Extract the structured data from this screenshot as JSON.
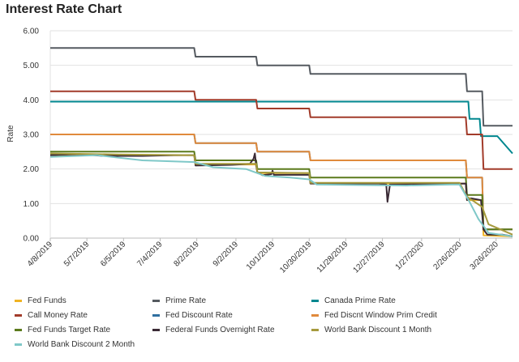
{
  "page": {
    "title": "Interest Rate Chart"
  },
  "chart_data": {
    "type": "line",
    "title": "Interest Rate Chart",
    "ylabel": "Rate",
    "xlabel": "",
    "ylim": [
      0,
      6
    ],
    "y_ticks": [
      "0.00",
      "1.00",
      "2.00",
      "3.00",
      "4.00",
      "5.00",
      "6.00"
    ],
    "x_ticks": [
      "4/8/2019",
      "5/7/2019",
      "6/5/2019",
      "7/4/2019",
      "8/2/2019",
      "9/2/2019",
      "10/1/2019",
      "10/30/2019",
      "11/28/2019",
      "12/27/2019",
      "1/27/2020",
      "2/26/2020",
      "3/26/2020"
    ],
    "x_range": [
      "2019-04-08",
      "2020-04-08"
    ],
    "grid": "horizontal",
    "legend_position": "bottom",
    "series": [
      {
        "name": "Fed Funds",
        "color": "#f0b323",
        "points": [
          [
            "2019-04-08",
            2.4
          ],
          [
            "2019-07-31",
            2.4
          ],
          [
            "2019-08-01",
            2.13
          ],
          [
            "2019-09-18",
            2.13
          ],
          [
            "2019-09-19",
            1.88
          ],
          [
            "2019-10-30",
            1.88
          ],
          [
            "2019-10-31",
            1.58
          ],
          [
            "2020-03-02",
            1.58
          ],
          [
            "2020-03-03",
            1.1
          ],
          [
            "2020-03-15",
            1.1
          ],
          [
            "2020-03-16",
            0.08
          ],
          [
            "2020-04-08",
            0.05
          ]
        ]
      },
      {
        "name": "Prime Rate",
        "color": "#555a60",
        "points": [
          [
            "2019-04-08",
            5.5
          ],
          [
            "2019-07-31",
            5.5
          ],
          [
            "2019-08-01",
            5.25
          ],
          [
            "2019-09-18",
            5.25
          ],
          [
            "2019-09-19",
            5.0
          ],
          [
            "2019-10-30",
            5.0
          ],
          [
            "2019-10-31",
            4.75
          ],
          [
            "2020-03-02",
            4.75
          ],
          [
            "2020-03-03",
            4.25
          ],
          [
            "2020-03-15",
            4.25
          ],
          [
            "2020-03-16",
            3.25
          ],
          [
            "2020-04-08",
            3.25
          ]
        ]
      },
      {
        "name": "Canada Prime Rate",
        "color": "#00878f",
        "points": [
          [
            "2019-04-08",
            3.95
          ],
          [
            "2020-03-04",
            3.95
          ],
          [
            "2020-03-05",
            3.45
          ],
          [
            "2020-03-13",
            3.45
          ],
          [
            "2020-03-14",
            2.95
          ],
          [
            "2020-03-27",
            2.95
          ],
          [
            "2020-04-08",
            2.45
          ]
        ]
      },
      {
        "name": "Call Money Rate",
        "color": "#a23b2a",
        "points": [
          [
            "2019-04-08",
            4.25
          ],
          [
            "2019-07-31",
            4.25
          ],
          [
            "2019-08-01",
            4.0
          ],
          [
            "2019-09-18",
            4.0
          ],
          [
            "2019-09-19",
            3.75
          ],
          [
            "2019-10-30",
            3.75
          ],
          [
            "2019-10-31",
            3.5
          ],
          [
            "2020-03-02",
            3.5
          ],
          [
            "2020-03-03",
            3.0
          ],
          [
            "2020-03-15",
            3.0
          ],
          [
            "2020-03-16",
            2.0
          ],
          [
            "2020-04-08",
            2.0
          ]
        ]
      },
      {
        "name": "Fed Discount Rate",
        "color": "#2f6fa0",
        "points": [
          [
            "2019-04-08",
            3.0
          ],
          [
            "2019-07-31",
            3.0
          ],
          [
            "2019-08-01",
            2.75
          ],
          [
            "2019-09-18",
            2.75
          ],
          [
            "2019-09-19",
            2.5
          ],
          [
            "2019-10-30",
            2.5
          ],
          [
            "2019-10-31",
            2.25
          ],
          [
            "2020-03-02",
            2.25
          ],
          [
            "2020-03-03",
            1.75
          ],
          [
            "2020-03-15",
            1.75
          ],
          [
            "2020-03-16",
            0.25
          ],
          [
            "2020-04-08",
            0.25
          ]
        ]
      },
      {
        "name": "Fed Discnt Window Prim Credit",
        "color": "#e08a3c",
        "points": [
          [
            "2019-04-08",
            3.0
          ],
          [
            "2019-07-31",
            3.0
          ],
          [
            "2019-08-01",
            2.75
          ],
          [
            "2019-09-18",
            2.75
          ],
          [
            "2019-09-19",
            2.5
          ],
          [
            "2019-10-30",
            2.5
          ],
          [
            "2019-10-31",
            2.25
          ],
          [
            "2020-03-02",
            2.25
          ],
          [
            "2020-03-03",
            1.75
          ],
          [
            "2020-03-15",
            1.75
          ],
          [
            "2020-03-16",
            0.25
          ],
          [
            "2020-04-08",
            0.25
          ]
        ]
      },
      {
        "name": "Fed Funds Target Rate",
        "color": "#5b7a1c",
        "points": [
          [
            "2019-04-08",
            2.5
          ],
          [
            "2019-07-31",
            2.5
          ],
          [
            "2019-08-01",
            2.25
          ],
          [
            "2019-09-18",
            2.25
          ],
          [
            "2019-09-19",
            2.0
          ],
          [
            "2019-10-30",
            2.0
          ],
          [
            "2019-10-31",
            1.75
          ],
          [
            "2020-03-02",
            1.75
          ],
          [
            "2020-03-03",
            1.25
          ],
          [
            "2020-03-15",
            1.25
          ],
          [
            "2020-03-16",
            0.25
          ],
          [
            "2020-04-08",
            0.25
          ]
        ]
      },
      {
        "name": "Federal Funds Overnight Rate",
        "color": "#3a2a35",
        "points": [
          [
            "2019-04-08",
            2.4
          ],
          [
            "2019-05-01",
            2.43
          ],
          [
            "2019-05-20",
            2.38
          ],
          [
            "2019-06-20",
            2.38
          ],
          [
            "2019-07-15",
            2.4
          ],
          [
            "2019-07-31",
            2.4
          ],
          [
            "2019-08-01",
            2.1
          ],
          [
            "2019-08-30",
            2.12
          ],
          [
            "2019-09-13",
            2.15
          ],
          [
            "2019-09-16",
            2.3
          ],
          [
            "2019-09-17",
            2.45
          ],
          [
            "2019-09-18",
            2.1
          ],
          [
            "2019-09-19",
            1.9
          ],
          [
            "2019-09-23",
            1.82
          ],
          [
            "2019-09-30",
            1.85
          ],
          [
            "2019-10-01",
            1.95
          ],
          [
            "2019-10-02",
            1.83
          ],
          [
            "2019-10-30",
            1.83
          ],
          [
            "2019-10-31",
            1.58
          ],
          [
            "2019-12-24",
            1.58
          ],
          [
            "2019-12-30",
            1.55
          ],
          [
            "2019-12-31",
            1.05
          ],
          [
            "2020-01-02",
            1.55
          ],
          [
            "2020-03-02",
            1.58
          ],
          [
            "2020-03-03",
            1.1
          ],
          [
            "2020-03-06",
            1.15
          ],
          [
            "2020-03-14",
            1.1
          ],
          [
            "2020-03-16",
            0.25
          ],
          [
            "2020-03-19",
            0.1
          ],
          [
            "2020-03-31",
            0.1
          ],
          [
            "2020-04-08",
            0.05
          ]
        ]
      },
      {
        "name": "World Bank Discount 1 Month",
        "color": "#a69a3d",
        "points": [
          [
            "2019-04-08",
            2.45
          ],
          [
            "2019-06-01",
            2.42
          ],
          [
            "2019-07-31",
            2.4
          ],
          [
            "2019-08-01",
            2.15
          ],
          [
            "2019-09-18",
            2.15
          ],
          [
            "2019-09-19",
            1.9
          ],
          [
            "2019-10-30",
            1.88
          ],
          [
            "2019-10-31",
            1.6
          ],
          [
            "2020-02-26",
            1.6
          ],
          [
            "2020-03-03",
            1.2
          ],
          [
            "2020-03-15",
            0.9
          ],
          [
            "2020-03-20",
            0.4
          ],
          [
            "2020-04-08",
            0.1
          ]
        ]
      },
      {
        "name": "World Bank Discount 2 Month",
        "color": "#7fc8c8",
        "points": [
          [
            "2019-04-08",
            2.35
          ],
          [
            "2019-05-15",
            2.4
          ],
          [
            "2019-06-20",
            2.25
          ],
          [
            "2019-07-31",
            2.2
          ],
          [
            "2019-08-15",
            2.05
          ],
          [
            "2019-09-10",
            2.0
          ],
          [
            "2019-09-25",
            1.8
          ],
          [
            "2019-10-15",
            1.75
          ],
          [
            "2019-10-30",
            1.7
          ],
          [
            "2019-11-05",
            1.55
          ],
          [
            "2020-01-15",
            1.52
          ],
          [
            "2020-02-20",
            1.55
          ],
          [
            "2020-02-26",
            1.55
          ],
          [
            "2020-03-05",
            1.05
          ],
          [
            "2020-03-12",
            0.55
          ],
          [
            "2020-03-20",
            0.15
          ],
          [
            "2020-04-08",
            0.05
          ]
        ]
      }
    ]
  }
}
